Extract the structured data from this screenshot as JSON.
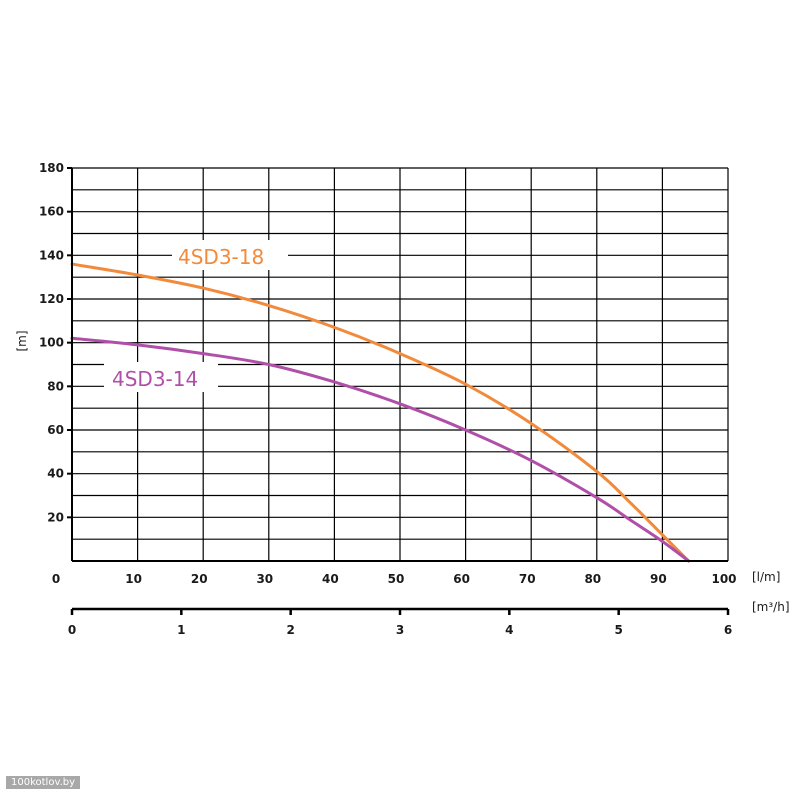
{
  "chart_data": {
    "type": "line",
    "title": "",
    "ylabel": "[m]",
    "xlabel": "[l/m]",
    "x2label": "[m³/h]",
    "xlim": [
      0,
      100
    ],
    "ylim": [
      0,
      180
    ],
    "x2lim": [
      0,
      6
    ],
    "grid": true,
    "y_ticks": [
      20,
      40,
      60,
      80,
      100,
      120,
      140,
      160,
      180
    ],
    "x_ticks": [
      0,
      10,
      20,
      30,
      40,
      50,
      60,
      70,
      80,
      90,
      100
    ],
    "x2_ticks": [
      0,
      1,
      2,
      3,
      4,
      5,
      6
    ],
    "series": [
      {
        "name": "4SD3-18",
        "color": "#f28a3c",
        "x": [
          0,
          10,
          20,
          30,
          40,
          50,
          60,
          70,
          80,
          85,
          90,
          94
        ],
        "y": [
          136,
          131,
          125,
          117,
          107,
          95,
          81,
          63,
          41,
          27,
          12,
          0
        ]
      },
      {
        "name": "4SD3-14",
        "color": "#b04fa8",
        "x": [
          0,
          10,
          20,
          30,
          40,
          50,
          60,
          70,
          80,
          85,
          90,
          94
        ],
        "y": [
          102,
          99,
          95,
          90,
          82,
          72,
          60,
          46,
          29,
          19,
          9,
          0
        ]
      }
    ]
  },
  "watermark": "100kotlov.by"
}
